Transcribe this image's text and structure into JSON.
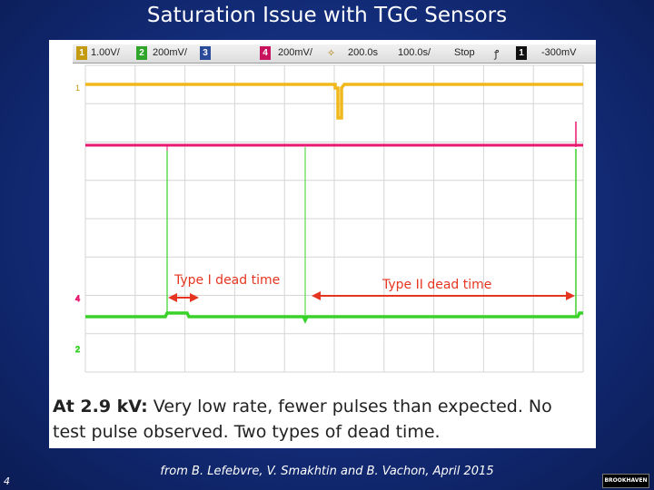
{
  "title": "Saturation Issue with TGC Sensors",
  "scope_header": {
    "ch1_num": "1",
    "ch1_scale": "1.00V/",
    "ch2_num": "2",
    "ch2_scale": "200mV/",
    "ch3_num": "3",
    "ch4_num": "4",
    "ch4_scale": "200mV/",
    "trigger_pos": "200.0s",
    "timebase": "100.0s/",
    "run_state": "Stop",
    "trigger_slope": "ꝭ",
    "trigger_ch": "1",
    "trigger_level": "-300mV"
  },
  "scope_markers": {
    "m1": "1",
    "m4": "4",
    "m2": "2"
  },
  "annotations": {
    "type1": "Type I dead time",
    "type2": "Type II dead time"
  },
  "caption": {
    "bold": "At 2.9 kV:",
    "line1_rest": " Very low rate, fewer pulses than expected. No",
    "line2": "test pulse observed. Two types of dead time."
  },
  "credit": "from B. Lefebvre, V. Smakhtin and B. Vachon, April 2015",
  "page_number": "4",
  "logo_text": "BROOKHAVEN",
  "colors": {
    "ch1": "#f0b81c",
    "ch4": "#e8166e",
    "ch2": "#3ad22a",
    "annotation": "#e53520"
  }
}
